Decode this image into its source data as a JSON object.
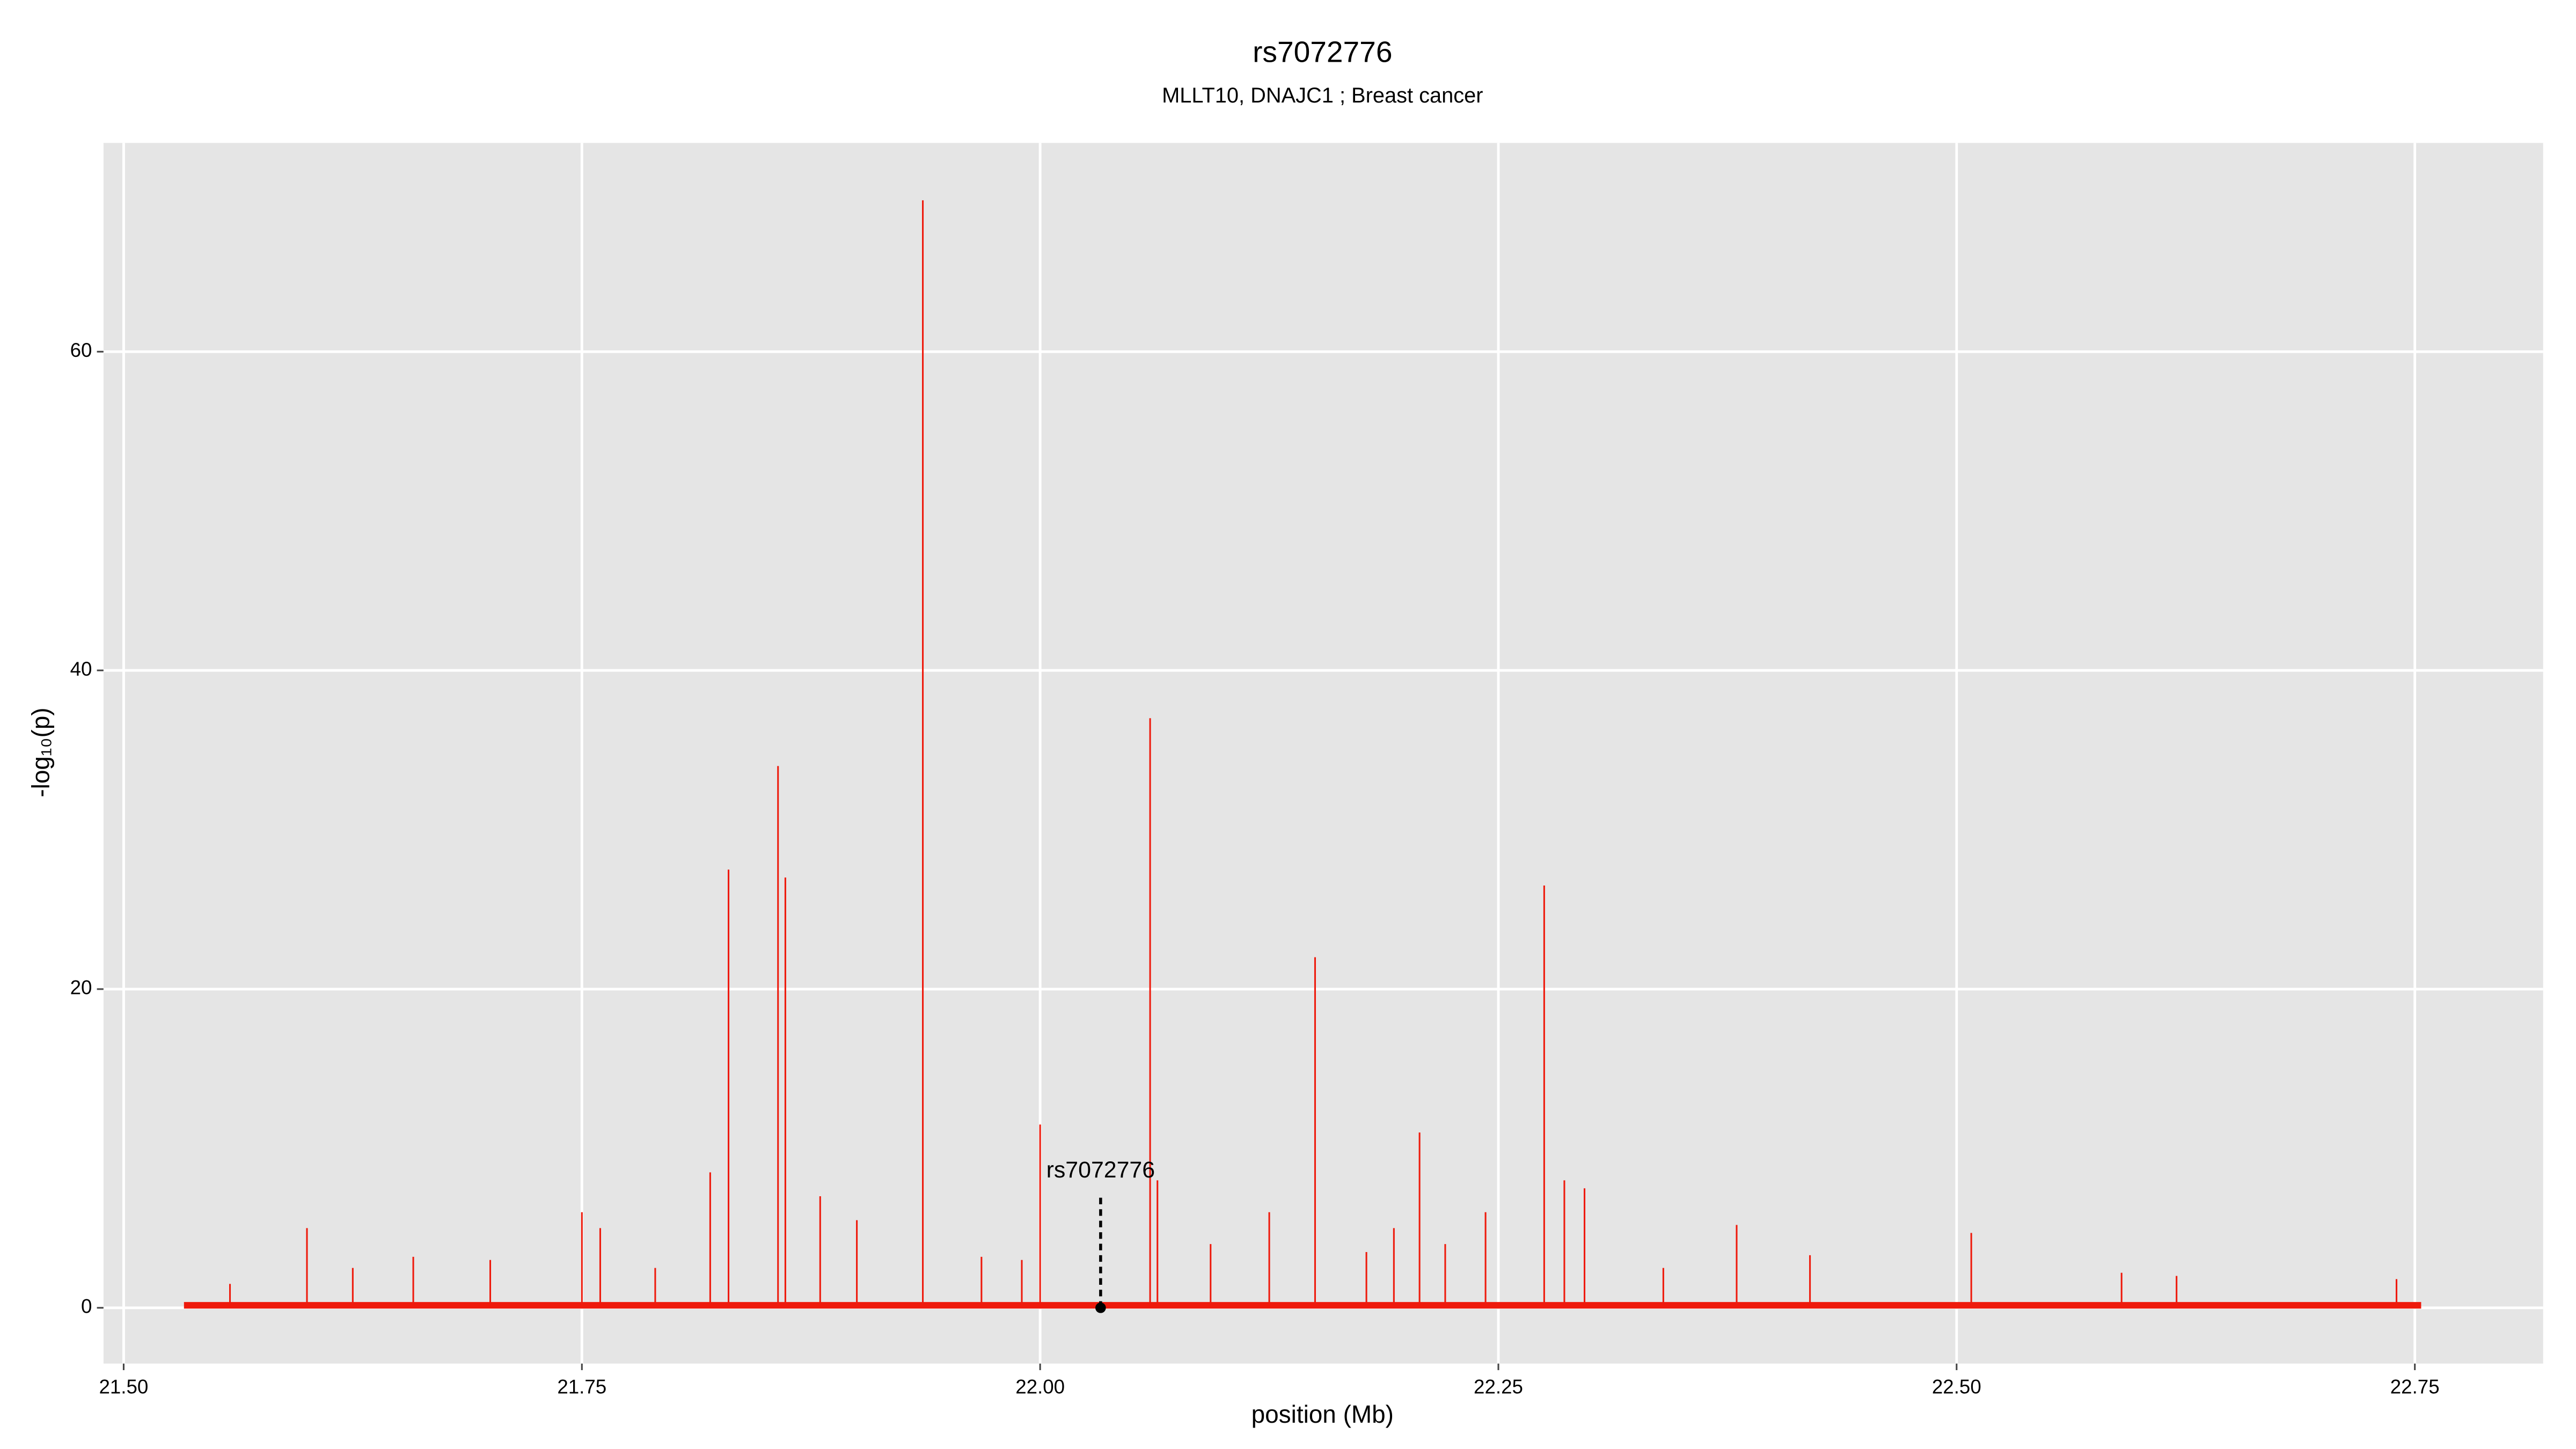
{
  "chart_data": {
    "type": "spike",
    "title": "rs7072776",
    "subtitle": "MLLT10, DNAJC1 ; Breast cancer",
    "xlabel": "position (Mb)",
    "ylabel": "-log₁₀(p)",
    "color": "#ee1a0c",
    "grid": true,
    "xlim": [
      21.489,
      22.82
    ],
    "ylim": [
      -3.5,
      73.1
    ],
    "xticks": [
      {
        "value": 21.5,
        "label": "21.50"
      },
      {
        "value": 21.75,
        "label": "21.75"
      },
      {
        "value": 22.0,
        "label": "22.00"
      },
      {
        "value": 22.25,
        "label": "22.25"
      },
      {
        "value": 22.5,
        "label": "22.50"
      },
      {
        "value": 22.75,
        "label": "22.75"
      }
    ],
    "yticks": [
      0,
      20,
      40,
      60
    ],
    "x": [
      21.558,
      21.6,
      21.625,
      21.658,
      21.7,
      21.75,
      21.76,
      21.79,
      21.82,
      21.83,
      21.857,
      21.861,
      21.88,
      21.9,
      21.936,
      21.968,
      21.99,
      22.0,
      22.06,
      22.064,
      22.093,
      22.125,
      22.15,
      22.178,
      22.193,
      22.207,
      22.221,
      22.243,
      22.275,
      22.286,
      22.297,
      22.34,
      22.38,
      22.42,
      22.508,
      22.59,
      22.62,
      22.74
    ],
    "values": [
      1.5,
      5,
      2.5,
      3.2,
      3,
      6,
      5,
      2.5,
      8.5,
      27.5,
      34,
      27,
      7,
      5.5,
      69.5,
      3.2,
      3,
      11.5,
      37,
      8,
      4,
      6,
      22,
      3.5,
      5,
      11,
      4,
      6,
      26.5,
      8,
      7.5,
      2.5,
      5.2,
      3.3,
      4.7,
      2.2,
      2,
      1.8
    ],
    "annotation": {
      "label": "rs7072776",
      "x": 22.033,
      "y": 0
    }
  }
}
